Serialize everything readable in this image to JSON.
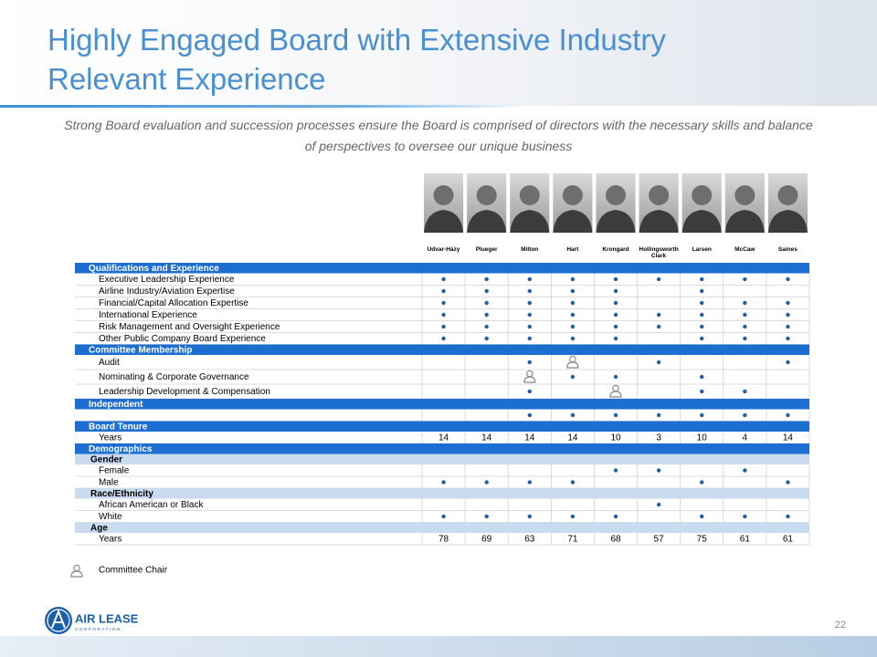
{
  "header": {
    "title": "Highly Engaged Board with Extensive Industry Relevant Experience",
    "subtitle": "Strong Board evaluation and succession processes ensure the Board is comprised of directors with the necessary skills and balance of perspectives to oversee our unique business"
  },
  "table": {
    "columns": [
      "Udvar-Házy",
      "Plueger",
      "Milton",
      "Hart",
      "Krongard",
      "Hollingsworth Clark",
      "Larsen",
      "McCaw",
      "Saines"
    ],
    "rows": [
      {
        "section": "Qualifications and Experience"
      },
      {
        "label": "Executive Leadership Experience",
        "cells": [
          "dot",
          "dot",
          "dot",
          "dot",
          "dot",
          "dot",
          "dot",
          "dot",
          "dot"
        ]
      },
      {
        "label": "Airline Industry/Aviation Expertise",
        "cells": [
          "dot",
          "dot",
          "dot",
          "dot",
          "dot",
          null,
          "dot",
          null,
          null
        ]
      },
      {
        "label": "Financial/Capital Allocation Expertise",
        "cells": [
          "dot",
          "dot",
          "dot",
          "dot",
          "dot",
          null,
          "dot",
          "dot",
          "dot"
        ]
      },
      {
        "label": "International Experience",
        "cells": [
          "dot",
          "dot",
          "dot",
          "dot",
          "dot",
          "dot",
          "dot",
          "dot",
          "dot"
        ]
      },
      {
        "label": "Risk Management and Oversight Experience",
        "cells": [
          "dot",
          "dot",
          "dot",
          "dot",
          "dot",
          "dot",
          "dot",
          "dot",
          "dot"
        ]
      },
      {
        "label": "Other Public Company Board Experience",
        "cells": [
          "dot",
          "dot",
          "dot",
          "dot",
          "dot",
          null,
          "dot",
          "dot",
          "dot"
        ]
      },
      {
        "section": "Committee Membership"
      },
      {
        "label": "Audit",
        "cells": [
          null,
          null,
          "dot",
          "chair",
          null,
          "dot",
          null,
          null,
          "dot"
        ]
      },
      {
        "label": "Nominating & Corporate Governance",
        "cells": [
          null,
          null,
          "chair",
          "dot",
          "dot",
          null,
          "dot",
          null,
          null
        ]
      },
      {
        "label": "Leadership Development & Compensation",
        "cells": [
          null,
          null,
          "dot",
          null,
          "chair",
          null,
          "dot",
          "dot",
          null
        ]
      },
      {
        "section": "Independent"
      },
      {
        "cells": [
          null,
          null,
          "dot",
          "dot",
          "dot",
          "dot",
          "dot",
          "dot",
          "dot"
        ]
      },
      {
        "section": "Board Tenure"
      },
      {
        "label": "Years",
        "cells": [
          14,
          14,
          14,
          14,
          10,
          3,
          10,
          4,
          14
        ]
      },
      {
        "section": "Demographics"
      },
      {
        "subsection": "Gender"
      },
      {
        "label": "Female",
        "cells": [
          null,
          null,
          null,
          null,
          "dot",
          "dot",
          null,
          "dot",
          null
        ]
      },
      {
        "label": "Male",
        "cells": [
          "dot",
          "dot",
          "dot",
          "dot",
          null,
          null,
          "dot",
          null,
          "dot"
        ]
      },
      {
        "subsection": "Race/Ethnicity"
      },
      {
        "label": "African American or Black",
        "cells": [
          null,
          null,
          null,
          null,
          null,
          "dot",
          null,
          null,
          null
        ]
      },
      {
        "label": "White",
        "cells": [
          "dot",
          "dot",
          "dot",
          "dot",
          "dot",
          null,
          "dot",
          "dot",
          "dot"
        ]
      },
      {
        "subsection": "Age"
      },
      {
        "label": "Years",
        "cells": [
          78,
          69,
          63,
          71,
          68,
          57,
          75,
          61,
          61
        ]
      }
    ]
  },
  "legend": {
    "chair": "Committee Chair"
  },
  "footer": {
    "logo_name": "AIR LEASE",
    "logo_sub": "CORPORATION",
    "page": "22"
  }
}
